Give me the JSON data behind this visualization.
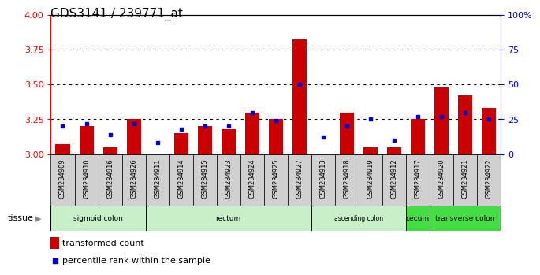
{
  "title": "GDS3141 / 239771_at",
  "samples": [
    "GSM234909",
    "GSM234910",
    "GSM234916",
    "GSM234926",
    "GSM234911",
    "GSM234914",
    "GSM234915",
    "GSM234923",
    "GSM234924",
    "GSM234925",
    "GSM234927",
    "GSM234913",
    "GSM234918",
    "GSM234919",
    "GSM234912",
    "GSM234917",
    "GSM234920",
    "GSM234921",
    "GSM234922"
  ],
  "transformed_count": [
    3.07,
    3.2,
    3.05,
    3.25,
    3.0,
    3.15,
    3.2,
    3.18,
    3.3,
    3.25,
    3.82,
    3.0,
    3.3,
    3.05,
    3.05,
    3.25,
    3.48,
    3.42,
    3.33
  ],
  "percentile_rank": [
    20,
    22,
    14,
    22,
    8,
    18,
    20,
    20,
    30,
    24,
    50,
    12,
    20,
    25,
    10,
    27,
    27,
    30,
    25
  ],
  "tissue_groups": [
    {
      "label": "sigmoid colon",
      "start": 0,
      "end": 4,
      "color": "#c8f0c8"
    },
    {
      "label": "rectum",
      "start": 4,
      "end": 11,
      "color": "#c8f0c8"
    },
    {
      "label": "ascending colon",
      "start": 11,
      "end": 15,
      "color": "#c8f0c8"
    },
    {
      "label": "cecum",
      "start": 15,
      "end": 16,
      "color": "#44dd44"
    },
    {
      "label": "transverse colon",
      "start": 16,
      "end": 19,
      "color": "#44dd44"
    }
  ],
  "ylim_left": [
    3.0,
    4.0
  ],
  "ylim_right": [
    0,
    100
  ],
  "yticks_left": [
    3.0,
    3.25,
    3.5,
    3.75,
    4.0
  ],
  "yticks_right": [
    0,
    25,
    50,
    75,
    100
  ],
  "bar_color": "#cc0000",
  "dot_color": "#0000cc",
  "bar_bottom": 3.0,
  "plot_bg": "#ffffff",
  "cell_bg": "#d0d0d0"
}
